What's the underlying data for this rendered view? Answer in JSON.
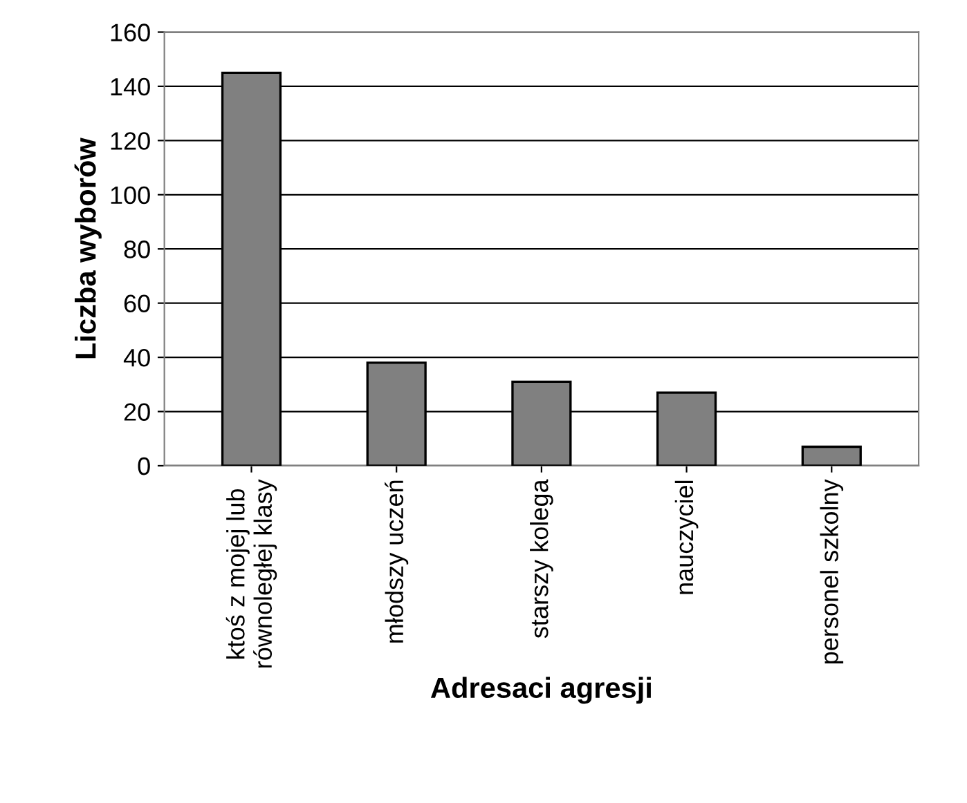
{
  "chart_data": {
    "type": "bar",
    "xlabel": "Adresaci agresji",
    "ylabel": "Liczba wyborów",
    "categories": [
      "ktoś z mojej lub\nrównoległej klasy",
      "młodszy uczeń",
      "starszy kolega",
      "nauczyciel",
      "personel szkolny"
    ],
    "values": [
      145,
      38,
      31,
      27,
      7
    ],
    "color": "#808080",
    "ylim": [
      0,
      160
    ],
    "yticks": [
      0,
      20,
      40,
      60,
      80,
      100,
      120,
      140,
      160
    ],
    "grid": "y",
    "legend": false
  }
}
